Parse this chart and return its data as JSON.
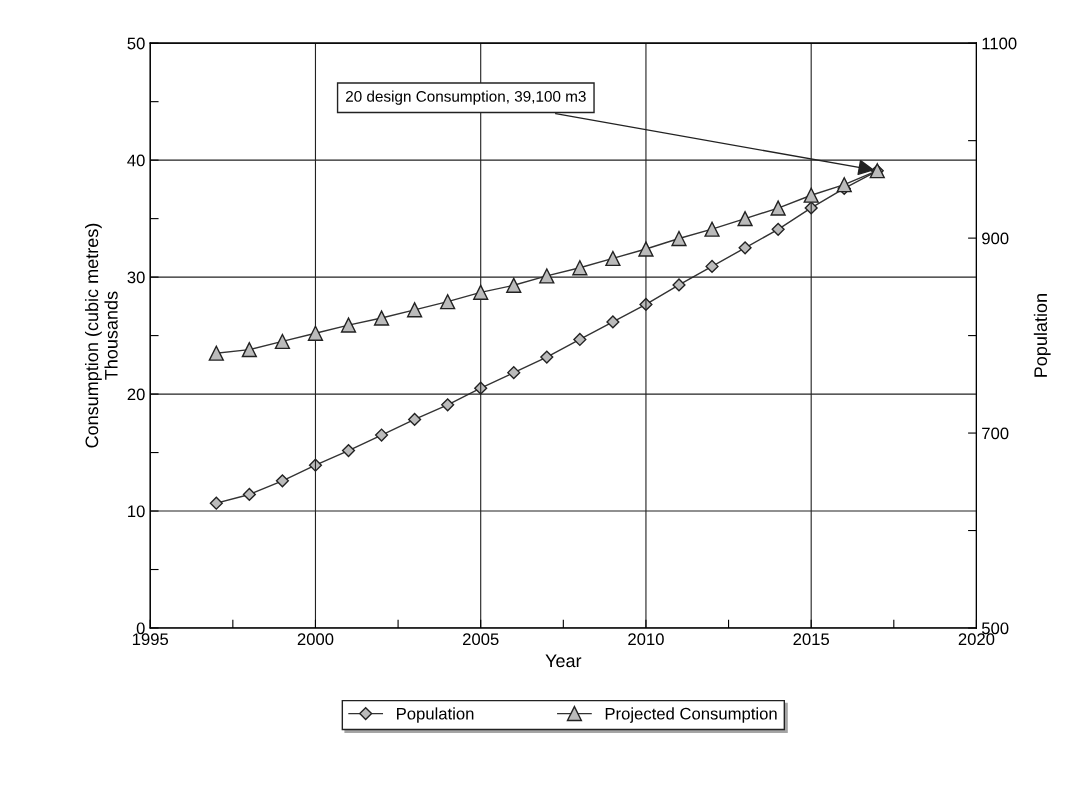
{
  "chart_data": {
    "type": "line",
    "xlabel": "Year",
    "ylabel": "Consumption (cubic metres)\nThousands",
    "y2label": "Population",
    "x": [
      1997,
      1998,
      1999,
      2000,
      2001,
      2002,
      2003,
      2004,
      2005,
      2006,
      2007,
      2008,
      2009,
      2010,
      2011,
      2012,
      2013,
      2014,
      2015,
      2016,
      2017
    ],
    "series": [
      {
        "name": "Population",
        "color": "#333333",
        "marker": "diamond",
        "axis": "y2",
        "values": [
          628,
          637,
          651,
          667,
          682,
          698,
          714,
          729,
          746,
          762,
          778,
          796,
          814,
          832,
          852,
          871,
          890,
          909,
          931,
          951,
          969
        ]
      },
      {
        "name": "Projected Consumption",
        "color": "#333333",
        "marker": "triangle",
        "values": [
          23.5,
          23.8,
          24.5,
          25.2,
          25.9,
          26.5,
          27.2,
          27.9,
          28.7,
          29.3,
          30.1,
          30.8,
          31.6,
          32.4,
          33.3,
          34.1,
          35.0,
          35.9,
          37.0,
          37.9,
          39.1
        ]
      }
    ],
    "xlim": [
      1995,
      2020
    ],
    "xticks": [
      1995,
      {
        "value": 1997.5,
        "label": null
      },
      2000,
      {
        "value": 2002.5,
        "label": null
      },
      2005,
      {
        "value": 2007.5,
        "label": null
      },
      2010,
      {
        "value": 2012.5,
        "label": null
      },
      2015,
      {
        "value": 2017.5,
        "label": null
      },
      2020
    ],
    "ylim": [
      0,
      50
    ],
    "yticks": [
      0,
      {
        "value": 5,
        "label": null
      },
      10,
      {
        "value": 15,
        "label": null
      },
      20,
      {
        "value": 25,
        "label": null
      },
      30,
      {
        "value": 35,
        "label": null
      },
      40,
      {
        "value": 45,
        "label": null
      },
      50
    ],
    "y2lim": [
      500,
      1100
    ],
    "y2ticks": [
      500,
      {
        "value": 600,
        "label": null
      },
      700,
      {
        "value": 800,
        "label": null
      },
      900,
      {
        "value": 1000,
        "label": null
      },
      1100
    ],
    "annotations": [
      {
        "text": "20 design Consumption, 39,100 m3",
        "x": 2017,
        "y": 39.1
      }
    ],
    "grid": true,
    "legend": "bottom",
    "line_style": "solid"
  }
}
